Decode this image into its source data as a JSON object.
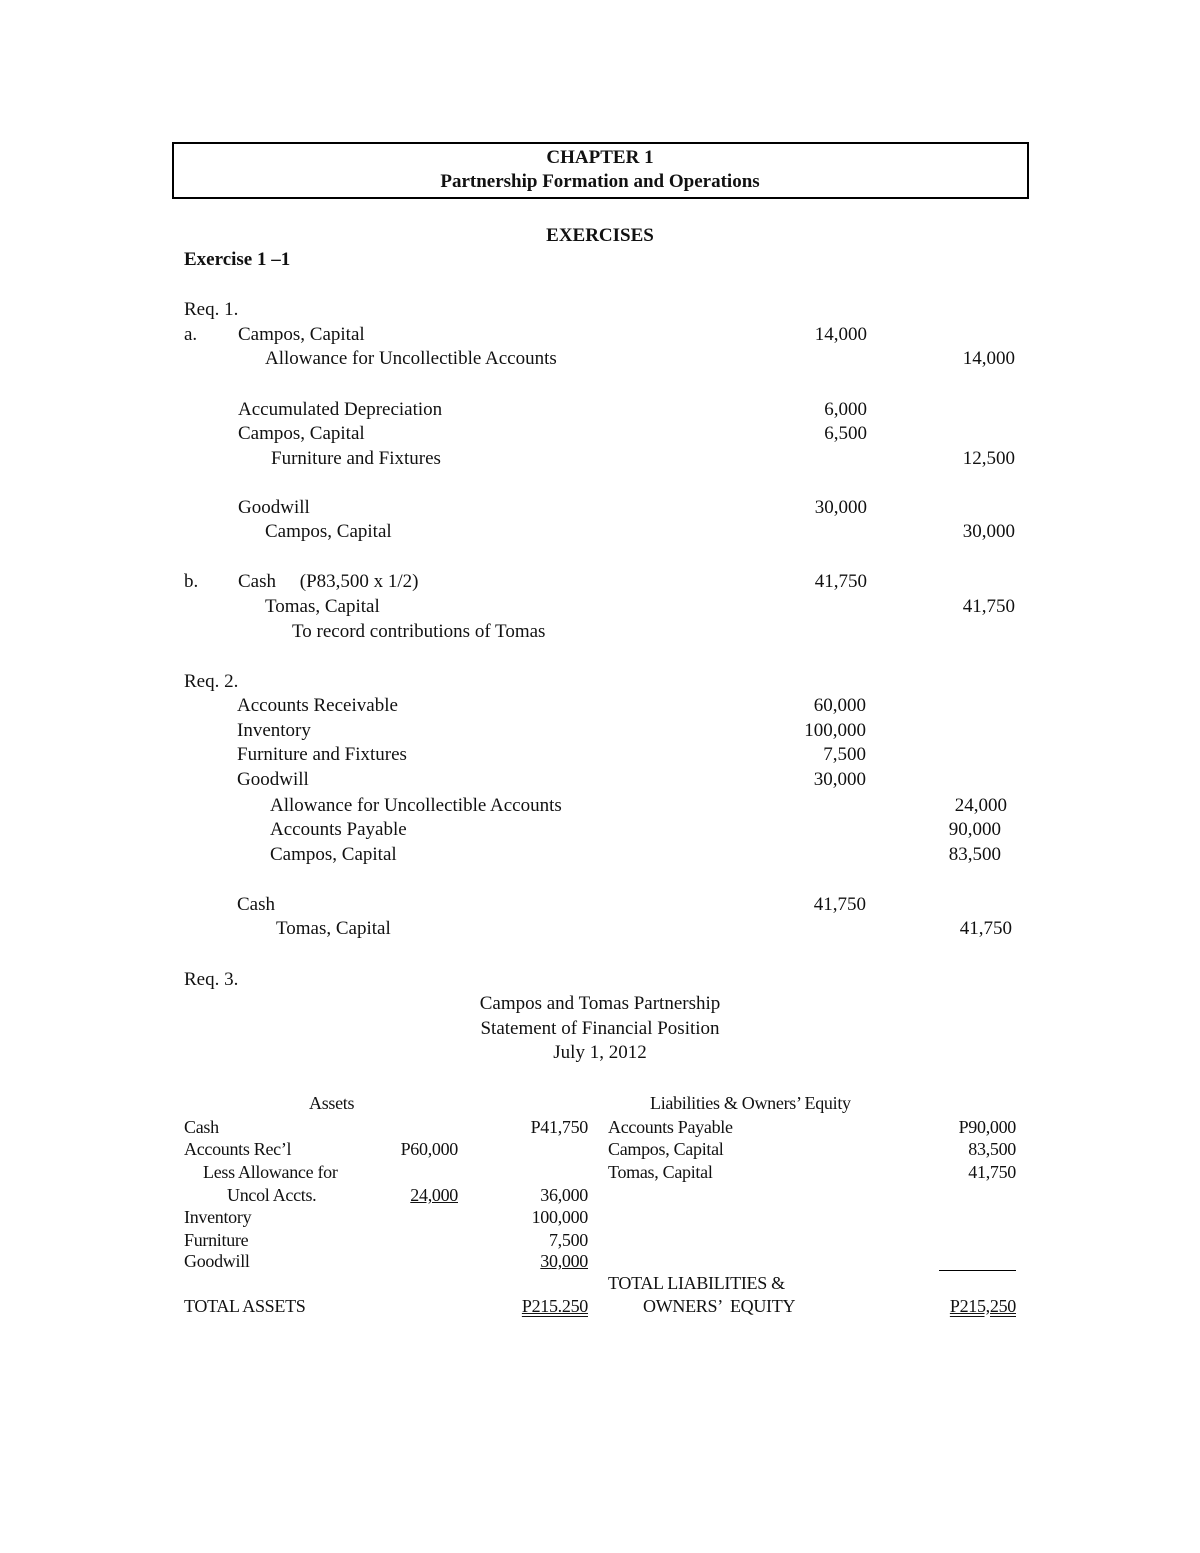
{
  "header": {
    "chapter": "CHAPTER 1",
    "subtitle": "Partnership Formation and Operations"
  },
  "exercises": "EXERCISES",
  "exercise_title": "Exercise 1 –1",
  "req1": {
    "label": "Req. 1.",
    "a": "a.",
    "b": "b.",
    "rows": [
      {
        "acct": "Campos, Capital",
        "dr": "14,000"
      },
      {
        "acct": "Allowance for Uncollectible Accounts",
        "cr": "14,000"
      },
      {
        "acct": "Accumulated Depreciation",
        "dr": "6,000"
      },
      {
        "acct": "Campos, Capital",
        "dr": "6,500"
      },
      {
        "acct": "Furniture and Fixtures",
        "cr": "12,500"
      },
      {
        "acct": "Goodwill",
        "dr": "30,000"
      },
      {
        "acct": "Campos, Capital",
        "cr": "30,000"
      },
      {
        "acct": "Cash     (P83,500 x 1/2)",
        "dr": "41,750"
      },
      {
        "acct": "Tomas, Capital",
        "cr": "41,750"
      },
      {
        "acct": "To record contributions of Tomas"
      }
    ]
  },
  "req2": {
    "label": "Req. 2.",
    "rows": [
      {
        "acct": "Accounts Receivable",
        "dr": "60,000"
      },
      {
        "acct": "Inventory",
        "dr": "100,000"
      },
      {
        "acct": "Furniture and Fixtures",
        "dr": "7,500"
      },
      {
        "acct": "Goodwill",
        "dr": "30,000"
      },
      {
        "acct": "Allowance for Uncollectible Accounts",
        "cr": "24,000"
      },
      {
        "acct": "Accounts Payable",
        "cr": "90,000"
      },
      {
        "acct": "Campos, Capital",
        "cr": "83,500"
      },
      {
        "acct": "Cash",
        "dr": "41,750"
      },
      {
        "acct": "Tomas, Capital",
        "cr": "41,750"
      }
    ]
  },
  "req3": {
    "label": "Req. 3.",
    "title": "Campos and Tomas Partnership",
    "statement": "Statement of Financial Position",
    "date": "July 1, 2012",
    "assets": {
      "heading": "Assets",
      "cash": "Cash",
      "cash_amt": "P41,750",
      "ar": "Accounts Rec’l",
      "ar_amt": "P60,000",
      "less": "Less Allowance for",
      "uncol": "Uncol Accts.",
      "uncol_amt": "24,000",
      "net_ar": "36,000",
      "inv": "Inventory",
      "inv_amt": "100,000",
      "furn": "Furniture",
      "furn_amt": "7,500",
      "gw": "Goodwill",
      "gw_amt": "30,000",
      "total": "TOTAL ASSETS",
      "total_amt": "P215.250"
    },
    "liab": {
      "heading": "Liabilities & Owners’ Equity",
      "ap": "Accounts Payable",
      "ap_amt": "P90,000",
      "cc": "Campos, Capital",
      "cc_amt": "83,500",
      "tc": "Tomas, Capital",
      "tc_amt": "41,750",
      "total1": "TOTAL LIABILITIES &",
      "total2": "OWNERS’  EQUITY",
      "total_amt": "P215,250"
    }
  }
}
